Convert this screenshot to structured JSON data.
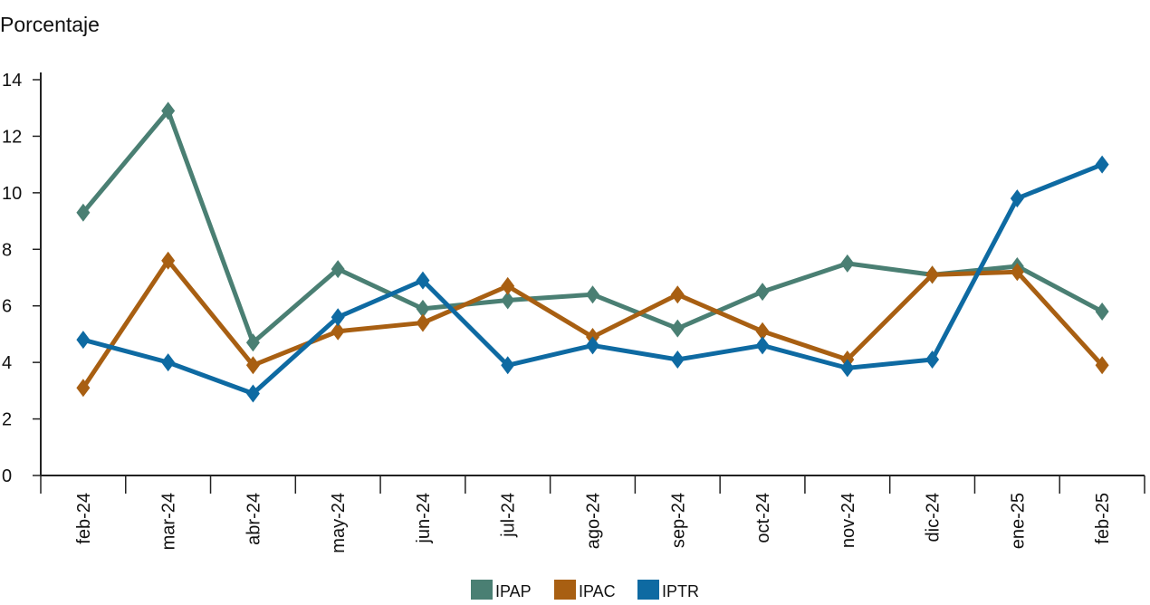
{
  "chart_data": {
    "type": "line",
    "title": "",
    "ylabel": "Porcentaje",
    "xlabel": "",
    "ylim": [
      0,
      14
    ],
    "yticks": [
      0,
      2,
      4,
      6,
      8,
      10,
      12,
      14
    ],
    "categories": [
      "feb-24",
      "mar-24",
      "abr-24",
      "may-24",
      "jun-24",
      "jul-24",
      "ago-24",
      "sep-24",
      "oct-24",
      "nov-24",
      "dic-24",
      "ene-25",
      "feb-25"
    ],
    "series": [
      {
        "name": "IPAP",
        "color": "#4a7f73",
        "marker": "diamond",
        "values": [
          9.3,
          12.9,
          4.7,
          7.3,
          5.9,
          6.2,
          6.4,
          5.2,
          6.5,
          7.5,
          7.1,
          7.4,
          5.8
        ]
      },
      {
        "name": "IPAC",
        "color": "#a85f12",
        "marker": "diamond",
        "values": [
          3.1,
          7.6,
          3.9,
          5.1,
          5.4,
          6.7,
          4.9,
          6.4,
          5.1,
          4.1,
          7.1,
          7.2,
          3.9
        ]
      },
      {
        "name": "IPTR",
        "color": "#0e6aa2",
        "marker": "diamond",
        "values": [
          4.8,
          4.0,
          2.9,
          5.6,
          6.9,
          3.9,
          4.6,
          4.1,
          4.6,
          3.8,
          4.1,
          9.8,
          11.0
        ]
      }
    ],
    "grid": false,
    "legend_position": "bottom-center"
  }
}
